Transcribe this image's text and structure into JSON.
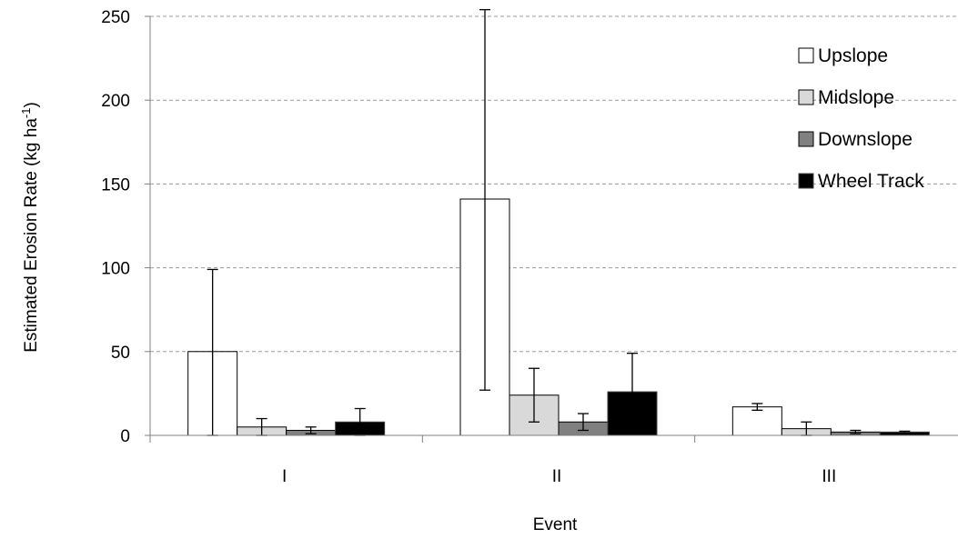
{
  "chart_data": {
    "type": "bar",
    "title": "",
    "xlabel": "Event",
    "ylabel_main": "Estimated Erosion Rate (kg ha",
    "ylabel_sup": "-1",
    "ylabel_tail": ")",
    "ylim": [
      0,
      250
    ],
    "yticks": [
      0,
      50,
      100,
      150,
      200,
      250
    ],
    "categories": [
      "I",
      "II",
      "III"
    ],
    "grid": true,
    "legend_position": "top-right",
    "series": [
      {
        "name": "Upslope",
        "color": "#ffffff",
        "values": [
          50,
          141,
          17
        ],
        "error_low": [
          0,
          27,
          15
        ],
        "error_high": [
          99,
          254,
          19
        ]
      },
      {
        "name": "Midslope",
        "color": "#d9d9d9",
        "values": [
          5,
          24,
          4
        ],
        "error_low": [
          0,
          8,
          0
        ],
        "error_high": [
          10,
          40,
          8
        ]
      },
      {
        "name": "Downslope",
        "color": "#808080",
        "values": [
          3,
          8,
          2
        ],
        "error_low": [
          1,
          3,
          1
        ],
        "error_high": [
          5,
          13,
          3
        ]
      },
      {
        "name": "Wheel Track",
        "color": "#000000",
        "values": [
          8,
          26,
          2
        ],
        "error_low": [
          0,
          3,
          1
        ],
        "error_high": [
          16,
          49,
          2.5
        ]
      }
    ]
  }
}
